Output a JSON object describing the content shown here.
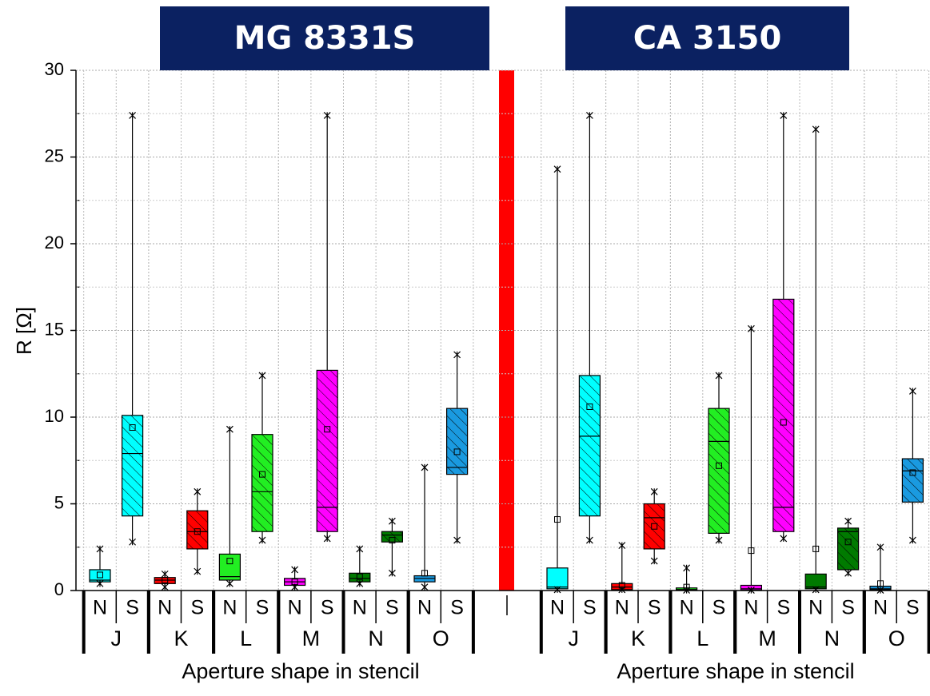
{
  "chart_data": {
    "type": "box",
    "ylabel": "R [Ω]",
    "ylim": [
      0,
      30
    ],
    "yticks": [
      0,
      5,
      10,
      15,
      20,
      25,
      30
    ],
    "yminor": [
      2.5,
      7.5,
      12.5,
      17.5,
      22.5,
      27.5
    ],
    "grid": true,
    "subgroups": [
      "N",
      "S"
    ],
    "hatch": [
      false,
      true
    ],
    "groups": [
      "J",
      "K",
      "L",
      "M",
      "N",
      "O"
    ],
    "colors": [
      "#00ffff",
      "#ff0000",
      "#22ee22",
      "#ff00ff",
      "#007a00",
      "#1a9ae0"
    ],
    "panels": [
      {
        "title": "MG 8331S",
        "xlabel": "Aperture shape in stencil",
        "boxes": [
          [
            {
              "min": 0.4,
              "q1": 0.5,
              "median": 0.6,
              "q3": 1.2,
              "max": 2.4,
              "mean": 0.9
            },
            {
              "min": 2.8,
              "q1": 4.3,
              "median": 7.9,
              "q3": 10.1,
              "max": 27.4,
              "mean": 9.4
            }
          ],
          [
            {
              "min": 0.2,
              "q1": 0.4,
              "median": 0.6,
              "q3": 0.75,
              "max": 0.95,
              "mean": 0.6
            },
            {
              "min": 1.1,
              "q1": 2.4,
              "median": 3.4,
              "q3": 4.6,
              "max": 5.7,
              "mean": 3.4
            }
          ],
          [
            {
              "min": 0.4,
              "q1": 0.6,
              "median": 0.8,
              "q3": 2.1,
              "max": 9.3,
              "mean": 1.7
            },
            {
              "min": 2.9,
              "q1": 3.4,
              "median": 5.7,
              "q3": 9.0,
              "max": 12.4,
              "mean": 6.7
            }
          ],
          [
            {
              "min": 0.2,
              "q1": 0.3,
              "median": 0.5,
              "q3": 0.7,
              "max": 1.2,
              "mean": 0.5
            },
            {
              "min": 3.0,
              "q1": 3.4,
              "median": 4.8,
              "q3": 12.7,
              "max": 27.4,
              "mean": 9.3
            }
          ],
          [
            {
              "min": 0.4,
              "q1": 0.5,
              "median": 0.7,
              "q3": 1.0,
              "max": 2.4,
              "mean": 0.8
            },
            {
              "min": 1.0,
              "q1": 2.8,
              "median": 3.2,
              "q3": 3.4,
              "max": 4.0,
              "mean": 2.9
            }
          ],
          [
            {
              "min": 0.2,
              "q1": 0.5,
              "median": 0.7,
              "q3": 0.85,
              "max": 7.1,
              "mean": 1.0
            },
            {
              "min": 2.9,
              "q1": 6.7,
              "median": 7.1,
              "q3": 10.5,
              "max": 13.6,
              "mean": 8.0
            }
          ]
        ]
      },
      {
        "title": "CA 3150",
        "xlabel": "Aperture shape in stencil",
        "boxes": [
          [
            {
              "min": 0.05,
              "q1": 0.1,
              "median": 0.2,
              "q3": 1.3,
              "max": 24.3,
              "mean": 4.1
            },
            {
              "min": 2.9,
              "q1": 4.3,
              "median": 8.9,
              "q3": 12.4,
              "max": 27.4,
              "mean": 10.6
            }
          ],
          [
            {
              "min": 0.05,
              "q1": 0.05,
              "median": 0.2,
              "q3": 0.4,
              "max": 2.6,
              "mean": 0.3
            },
            {
              "min": 1.7,
              "q1": 2.4,
              "median": 4.2,
              "q3": 5.0,
              "max": 5.7,
              "mean": 3.7
            }
          ],
          [
            {
              "min": 0.02,
              "q1": 0.03,
              "median": 0.06,
              "q3": 0.15,
              "max": 1.3,
              "mean": 0.2
            },
            {
              "min": 2.9,
              "q1": 3.3,
              "median": 8.6,
              "q3": 10.5,
              "max": 12.4,
              "mean": 7.2
            }
          ],
          [
            {
              "min": 0.02,
              "q1": 0.03,
              "median": 0.1,
              "q3": 0.3,
              "max": 15.1,
              "mean": 2.3
            },
            {
              "min": 3.0,
              "q1": 3.4,
              "median": 4.8,
              "q3": 16.8,
              "max": 27.4,
              "mean": 9.7
            }
          ],
          [
            {
              "min": 0.05,
              "q1": 0.1,
              "median": 0.2,
              "q3": 0.95,
              "max": 26.6,
              "mean": 2.4
            },
            {
              "min": 1.0,
              "q1": 1.2,
              "median": 3.4,
              "q3": 3.6,
              "max": 4.0,
              "mean": 2.8
            }
          ],
          [
            {
              "min": 0.02,
              "q1": 0.05,
              "median": 0.1,
              "q3": 0.25,
              "max": 2.5,
              "mean": 0.4
            },
            {
              "min": 2.9,
              "q1": 5.1,
              "median": 6.9,
              "q3": 7.6,
              "max": 11.5,
              "mean": 6.8
            }
          ]
        ]
      }
    ]
  }
}
